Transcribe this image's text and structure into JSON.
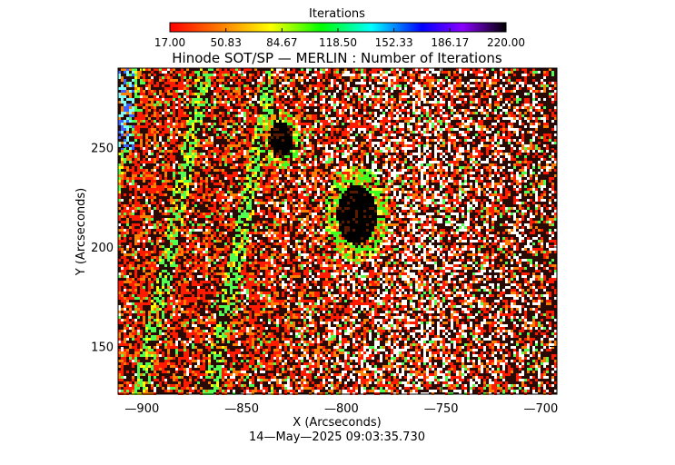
{
  "chart_data": {
    "type": "heatmap",
    "title": "Hinode SOT/SP — MERLIN : Number of Iterations",
    "xlabel": "X (Arcseconds)",
    "ylabel": "Y (Arcseconds)",
    "timestamp": "14—May—2025 09:03:35.730",
    "xlim": [
      -912,
      -692
    ],
    "ylim": [
      126,
      290
    ],
    "x_ticks": [
      -900,
      -850,
      -800,
      -750,
      -700
    ],
    "x_tick_labels": [
      "—900",
      "—850",
      "—800",
      "—750",
      "—700"
    ],
    "y_ticks": [
      150,
      200,
      250
    ],
    "y_tick_labels": [
      "150",
      "200",
      "250"
    ],
    "colorbar": {
      "label": "Iterations",
      "range": [
        17.0,
        220.0
      ],
      "ticks": [
        17.0,
        50.83,
        84.67,
        118.5,
        152.33,
        186.17,
        220.0
      ],
      "tick_labels": [
        "17.00",
        "50.83",
        "84.67",
        "118.50",
        "152.33",
        "186.17",
        "220.00"
      ],
      "colors": [
        "#ff0000",
        "#ff8c00",
        "#ffff00",
        "#00ff00",
        "#00ffff",
        "#0000ff",
        "#8b00ff",
        "#000000"
      ]
    },
    "features": [
      {
        "name": "sunspot-large",
        "x": -793,
        "y": 217,
        "rx": 10,
        "ry": 15
      },
      {
        "name": "sunspot-small",
        "x": -831,
        "y": 255,
        "rx": 6,
        "ry": 9
      }
    ]
  }
}
